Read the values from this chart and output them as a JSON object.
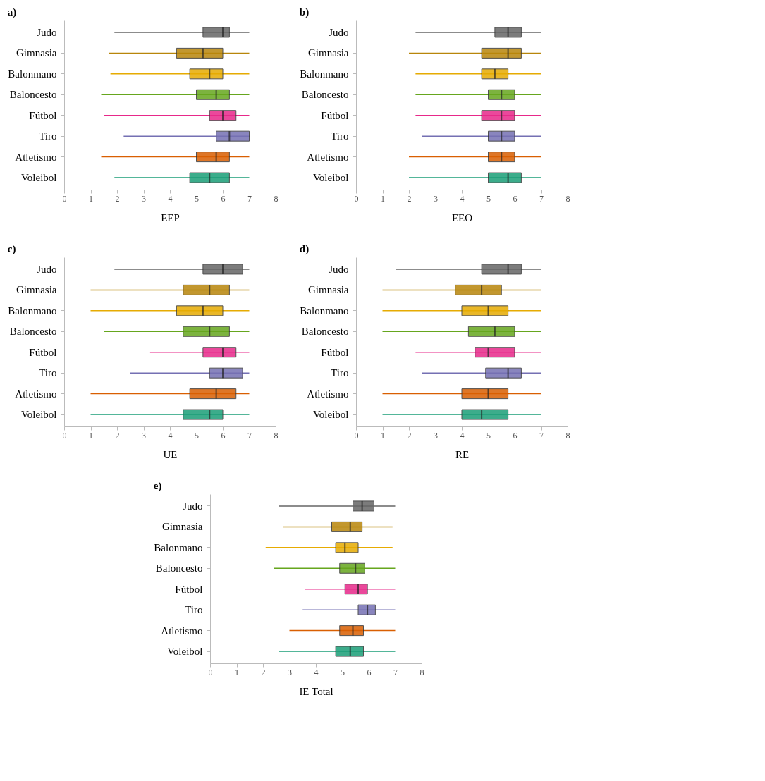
{
  "chart_data": [
    {
      "type": "box",
      "title": "a)",
      "xlabel": "EEP",
      "orientation": "horizontal",
      "grid": false,
      "xlim": [
        0,
        8
      ],
      "xticks": [
        0,
        1,
        2,
        3,
        4,
        5,
        6,
        7,
        8
      ],
      "categories": [
        "Judo",
        "Gimnasia",
        "Balonmano",
        "Baloncesto",
        "Fútbol",
        "Tiro",
        "Atletismo",
        "Voleibol"
      ],
      "colors": [
        "#666666",
        "#b8860b",
        "#e6ab02",
        "#66a61e",
        "#e7298a",
        "#7570b3",
        "#d95f02",
        "#1b9e77"
      ],
      "boxes": [
        {
          "low": 1.9,
          "q1": 5.25,
          "median": 6,
          "q3": 6.25,
          "high": 7
        },
        {
          "low": 1.7,
          "q1": 4.25,
          "median": 5.25,
          "q3": 6,
          "high": 7
        },
        {
          "low": 1.75,
          "q1": 4.75,
          "median": 5.5,
          "q3": 6,
          "high": 7
        },
        {
          "low": 1.4,
          "q1": 5,
          "median": 5.75,
          "q3": 6.25,
          "high": 7
        },
        {
          "low": 1.5,
          "q1": 5.5,
          "median": 6,
          "q3": 6.5,
          "high": 7
        },
        {
          "low": 2.25,
          "q1": 5.75,
          "median": 6.25,
          "q3": 7,
          "high": 7
        },
        {
          "low": 1.4,
          "q1": 5,
          "median": 5.75,
          "q3": 6.25,
          "high": 7
        },
        {
          "low": 1.9,
          "q1": 4.75,
          "median": 5.5,
          "q3": 6.25,
          "high": 7
        }
      ]
    },
    {
      "type": "box",
      "title": "b)",
      "xlabel": "EEO",
      "orientation": "horizontal",
      "grid": false,
      "xlim": [
        0,
        8
      ],
      "xticks": [
        0,
        1,
        2,
        3,
        4,
        5,
        6,
        7,
        8
      ],
      "categories": [
        "Judo",
        "Gimnasia",
        "Balonmano",
        "Baloncesto",
        "Fútbol",
        "Tiro",
        "Atletismo",
        "Voleibol"
      ],
      "colors": [
        "#666666",
        "#b8860b",
        "#e6ab02",
        "#66a61e",
        "#e7298a",
        "#7570b3",
        "#d95f02",
        "#1b9e77"
      ],
      "boxes": [
        {
          "low": 2.25,
          "q1": 5.25,
          "median": 5.75,
          "q3": 6.25,
          "high": 7
        },
        {
          "low": 2,
          "q1": 4.75,
          "median": 5.75,
          "q3": 6.25,
          "high": 7
        },
        {
          "low": 2.25,
          "q1": 4.75,
          "median": 5.25,
          "q3": 5.75,
          "high": 7
        },
        {
          "low": 2.25,
          "q1": 5,
          "median": 5.5,
          "q3": 6,
          "high": 7
        },
        {
          "low": 2.25,
          "q1": 4.75,
          "median": 5.5,
          "q3": 6,
          "high": 7
        },
        {
          "low": 2.5,
          "q1": 5,
          "median": 5.5,
          "q3": 6,
          "high": 7
        },
        {
          "low": 2,
          "q1": 5,
          "median": 5.5,
          "q3": 6,
          "high": 7
        },
        {
          "low": 2,
          "q1": 5,
          "median": 5.75,
          "q3": 6.25,
          "high": 7
        }
      ]
    },
    {
      "type": "box",
      "title": "c)",
      "xlabel": "UE",
      "orientation": "horizontal",
      "grid": false,
      "xlim": [
        0,
        8
      ],
      "xticks": [
        0,
        1,
        2,
        3,
        4,
        5,
        6,
        7,
        8
      ],
      "categories": [
        "Judo",
        "Gimnasia",
        "Balonmano",
        "Baloncesto",
        "Fútbol",
        "Tiro",
        "Atletismo",
        "Voleibol"
      ],
      "colors": [
        "#666666",
        "#b8860b",
        "#e6ab02",
        "#66a61e",
        "#e7298a",
        "#7570b3",
        "#d95f02",
        "#1b9e77"
      ],
      "boxes": [
        {
          "low": 1.9,
          "q1": 5.25,
          "median": 6,
          "q3": 6.75,
          "high": 7
        },
        {
          "low": 1,
          "q1": 4.5,
          "median": 5.5,
          "q3": 6.25,
          "high": 7
        },
        {
          "low": 1,
          "q1": 4.25,
          "median": 5.25,
          "q3": 6,
          "high": 7
        },
        {
          "low": 1.5,
          "q1": 4.5,
          "median": 5.5,
          "q3": 6.25,
          "high": 7
        },
        {
          "low": 3.25,
          "q1": 5.25,
          "median": 6,
          "q3": 6.5,
          "high": 7
        },
        {
          "low": 2.5,
          "q1": 5.5,
          "median": 6,
          "q3": 6.75,
          "high": 7
        },
        {
          "low": 1,
          "q1": 4.75,
          "median": 5.75,
          "q3": 6.5,
          "high": 7
        },
        {
          "low": 1,
          "q1": 4.5,
          "median": 5.5,
          "q3": 6,
          "high": 7
        }
      ]
    },
    {
      "type": "box",
      "title": "d)",
      "xlabel": "RE",
      "orientation": "horizontal",
      "grid": false,
      "xlim": [
        0,
        8
      ],
      "xticks": [
        0,
        1,
        2,
        3,
        4,
        5,
        6,
        7,
        8
      ],
      "categories": [
        "Judo",
        "Gimnasia",
        "Balonmano",
        "Baloncesto",
        "Fútbol",
        "Tiro",
        "Atletismo",
        "Voleibol"
      ],
      "colors": [
        "#666666",
        "#b8860b",
        "#e6ab02",
        "#66a61e",
        "#e7298a",
        "#7570b3",
        "#d95f02",
        "#1b9e77"
      ],
      "boxes": [
        {
          "low": 1.5,
          "q1": 4.75,
          "median": 5.75,
          "q3": 6.25,
          "high": 7
        },
        {
          "low": 1,
          "q1": 3.75,
          "median": 4.75,
          "q3": 5.5,
          "high": 7
        },
        {
          "low": 1,
          "q1": 4,
          "median": 5,
          "q3": 5.75,
          "high": 7
        },
        {
          "low": 1,
          "q1": 4.25,
          "median": 5.25,
          "q3": 6,
          "high": 7
        },
        {
          "low": 2.25,
          "q1": 4.5,
          "median": 5,
          "q3": 6,
          "high": 7
        },
        {
          "low": 2.5,
          "q1": 4.9,
          "median": 5.75,
          "q3": 6.25,
          "high": 7
        },
        {
          "low": 1,
          "q1": 4,
          "median": 5,
          "q3": 5.75,
          "high": 7
        },
        {
          "low": 1,
          "q1": 4,
          "median": 4.75,
          "q3": 5.75,
          "high": 7
        }
      ]
    },
    {
      "type": "box",
      "title": "e)",
      "xlabel": "IE Total",
      "orientation": "horizontal",
      "grid": false,
      "xlim": [
        0,
        8
      ],
      "xticks": [
        0,
        1,
        2,
        3,
        4,
        5,
        6,
        7,
        8
      ],
      "categories": [
        "Judo",
        "Gimnasia",
        "Balonmano",
        "Baloncesto",
        "Fútbol",
        "Tiro",
        "Atletismo",
        "Voleibol"
      ],
      "colors": [
        "#666666",
        "#b8860b",
        "#e6ab02",
        "#66a61e",
        "#e7298a",
        "#7570b3",
        "#d95f02",
        "#1b9e77"
      ],
      "boxes": [
        {
          "low": 2.6,
          "q1": 5.4,
          "median": 5.75,
          "q3": 6.2,
          "high": 7
        },
        {
          "low": 2.75,
          "q1": 4.6,
          "median": 5.3,
          "q3": 5.75,
          "high": 6.9
        },
        {
          "low": 2.1,
          "q1": 4.75,
          "median": 5.1,
          "q3": 5.6,
          "high": 6.9
        },
        {
          "low": 2.4,
          "q1": 4.9,
          "median": 5.5,
          "q3": 5.85,
          "high": 7
        },
        {
          "low": 3.6,
          "q1": 5.1,
          "median": 5.6,
          "q3": 5.95,
          "high": 7
        },
        {
          "low": 3.5,
          "q1": 5.6,
          "median": 5.95,
          "q3": 6.25,
          "high": 7
        },
        {
          "low": 3,
          "q1": 4.9,
          "median": 5.4,
          "q3": 5.8,
          "high": 7
        },
        {
          "low": 2.6,
          "q1": 4.75,
          "median": 5.3,
          "q3": 5.8,
          "high": 7
        }
      ]
    }
  ]
}
